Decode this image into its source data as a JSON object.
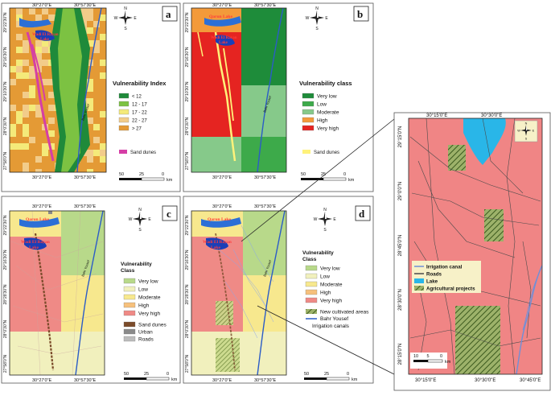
{
  "panels": {
    "a": {
      "letter": "a",
      "legend_title": "Vulnerability Index",
      "legend_items": [
        {
          "label": "< 12",
          "color": "#1f8a3a"
        },
        {
          "label": "12 - 17",
          "color": "#7cc242"
        },
        {
          "label": "17 - 22",
          "color": "#f4ea7a"
        },
        {
          "label": "22 - 27",
          "color": "#f2cc8a"
        },
        {
          "label": "> 27",
          "color": "#e49a35"
        }
      ],
      "extra_legend": {
        "label": "Sand dunes",
        "color": "#d53ea6"
      },
      "lake_labels": [
        "Wadi El Rayan",
        "Lake"
      ],
      "river_label": "Bahr Yousef",
      "lat_labels": [
        "29°22'30\"N",
        "29°16'30\"N",
        "29°10'30\"N",
        "28°0'30\"N",
        "27°58'0\"N"
      ],
      "lon_labels_top": [
        "30°27'0\"E",
        "30°57'30\"E"
      ],
      "lon_labels_bottom": [
        "30°27'0\"E",
        "30°57'30\"E"
      ],
      "scale": {
        "ticks": [
          "50",
          "25",
          "0"
        ],
        "unit": "km"
      }
    },
    "b": {
      "letter": "b",
      "legend_title": "Vulnerability class",
      "legend_items": [
        {
          "label": "Very low",
          "color": "#1e8c3a"
        },
        {
          "label": "Low",
          "color": "#3daa4a"
        },
        {
          "label": "Moderate",
          "color": "#86c98a"
        },
        {
          "label": "High",
          "color": "#f39a3a"
        },
        {
          "label": "Very high",
          "color": "#e52421"
        }
      ],
      "extra_legend": {
        "label": "Sand dunes",
        "color": "#fff27a"
      },
      "lake_labels": [
        "Qarun Lake",
        "Wadi El Rayan",
        "Lake"
      ],
      "river_label": "Bahr Yousef",
      "lat_labels": [
        "29°22'30\"N",
        "29°16'30\"N",
        "29°10'30\"N",
        "28°0'30\"N",
        "27°58'0\"N"
      ],
      "lon_labels_top": [
        "30°27'0\"E",
        "30°57'30\"E"
      ],
      "lon_labels_bottom": [
        "30°27'0\"E",
        "30°57'30\"E"
      ],
      "scale": {
        "ticks": [
          "50",
          "25",
          "0"
        ],
        "unit": "km"
      }
    },
    "c": {
      "letter": "c",
      "legend_title": [
        "Vulnerability",
        "Class"
      ],
      "legend_items": [
        {
          "label": "Very low",
          "color": "#b8d98a"
        },
        {
          "label": "Low",
          "color": "#f1f0bd"
        },
        {
          "label": "Moderate",
          "color": "#f7e88e"
        },
        {
          "label": "High",
          "color": "#f6c07c"
        },
        {
          "label": "Very high",
          "color": "#ef8a86"
        }
      ],
      "extra_items": [
        {
          "label": "Sand dunes",
          "color": "#7b4b2a"
        },
        {
          "label": "Urban",
          "color": "#8a8a8a"
        },
        {
          "label": "Roads",
          "color": "#bcbcbc"
        }
      ],
      "lake_labels": [
        "Qarun Lake",
        "Wadi El Rayan",
        "Lake"
      ],
      "river_label": "Bahr Yousef",
      "lat_labels": [
        "29°22'30\"N",
        "29°16'30\"N",
        "28°28'30\"N",
        "28°0'30\"N",
        "27°58'0\"N"
      ],
      "lon_labels_top": [
        "30°27'0\"E",
        "30°57'30\"E"
      ],
      "lon_labels_bottom": [
        "30°27'0\"E",
        "30°57'30\"E"
      ],
      "scale": {
        "ticks": [
          "50",
          "25",
          "0"
        ],
        "unit": "km"
      }
    },
    "d": {
      "letter": "d",
      "legend_title": [
        "Vulnerability",
        "Class"
      ],
      "legend_items": [
        {
          "label": "Very low",
          "color": "#b8d98a"
        },
        {
          "label": "Low",
          "color": "#f1f0bd"
        },
        {
          "label": "Moderate",
          "color": "#f7e88e"
        },
        {
          "label": "High",
          "color": "#f6c07c"
        },
        {
          "label": "Very high",
          "color": "#ef8a86"
        }
      ],
      "extra_items": [
        {
          "label": "New cultivated areas",
          "pattern": "hatch"
        },
        {
          "label": "Bahr Yousef",
          "color": "#2b5cc7"
        },
        {
          "label": "Irrigation canals",
          "color": "#8ea7e8"
        }
      ],
      "lake_labels": [
        "Qarun Lake",
        "Wadi El Rayan",
        "Lake"
      ],
      "river_label": "Bahr Yousef",
      "lat_labels": [
        "29°22'30\"N",
        "29°16'30\"N",
        "28°28'30\"N",
        "28°0'30\"N",
        "27°58'0\"N"
      ],
      "lon_labels_top": [
        "30°27'0\"E",
        "30°57'30\"E"
      ],
      "lon_labels_bottom": [
        "30°27'0\"E",
        "30°57'30\"E"
      ],
      "scale": {
        "ticks": [
          "50",
          "25",
          "0"
        ],
        "unit": "km"
      }
    },
    "inset": {
      "legend_items": [
        {
          "label": "Irrigation canal",
          "color": "#6f8fd8"
        },
        {
          "label": "Roads",
          "color": "#4a4a4a"
        },
        {
          "label": "Lake",
          "color": "#29b6e8"
        },
        {
          "label": "Agricultural projects",
          "pattern": "hatch"
        }
      ],
      "lat_labels": [
        "29°15'0\"N",
        "29°0'0\"N",
        "28°45'0\"N",
        "28°30'0\"N",
        "28°15'0\"N"
      ],
      "lon_labels_top": [
        "30°15'0\"E",
        "30°30'0\"E"
      ],
      "lon_labels_bottom": [
        "30°15'0\"E",
        "30°30'0\"E",
        "30°45'0\"E"
      ],
      "scale": {
        "ticks": [
          "10",
          "5",
          "0"
        ],
        "unit": "km"
      }
    }
  },
  "compass": {
    "n": "N",
    "s": "S",
    "e": "E",
    "w": "W"
  }
}
